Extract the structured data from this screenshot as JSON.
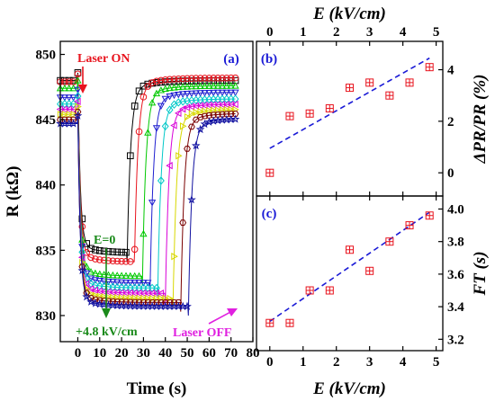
{
  "chart_data": [
    {
      "panel": "(a)",
      "type": "line",
      "xlabel": "Time (s)",
      "ylabel": "R (kΩ)",
      "xlim": [
        -8,
        80
      ],
      "ylim": [
        828,
        851
      ],
      "xticks": [
        0,
        10,
        20,
        30,
        40,
        50,
        60,
        70,
        80
      ],
      "yticks": [
        830,
        835,
        840,
        845,
        850
      ],
      "annotations": {
        "laser_on": "Laser ON",
        "laser_off": "Laser OFF",
        "e_zero": "E=0",
        "e_max": "+4.8 kV/cm"
      },
      "series": [
        {
          "color": "#000000",
          "marker": "square",
          "start": 848.0,
          "low": 834.8,
          "rise_time": 22.5,
          "end": 848.0
        },
        {
          "color": "#e8141e",
          "marker": "circle",
          "start": 847.9,
          "low": 834.1,
          "rise_time": 25.8,
          "end": 848.2
        },
        {
          "color": "#00c800",
          "marker": "triangle-up",
          "start": 847.4,
          "low": 833.0,
          "rise_time": 29.5,
          "end": 847.6
        },
        {
          "color": "#1f1fd0",
          "marker": "triangle-down",
          "start": 846.7,
          "low": 832.5,
          "rise_time": 33.0,
          "end": 847.1
        },
        {
          "color": "#00c8c8",
          "marker": "diamond",
          "start": 846.2,
          "low": 832.1,
          "rise_time": 36.5,
          "end": 846.6
        },
        {
          "color": "#d800d8",
          "marker": "triangle-left",
          "start": 845.8,
          "low": 831.7,
          "rise_time": 40.0,
          "end": 846.2
        },
        {
          "color": "#d8d800",
          "marker": "triangle-right",
          "start": 845.4,
          "low": 831.3,
          "rise_time": 43.5,
          "end": 845.8
        },
        {
          "color": "#7a0000",
          "marker": "hexagon",
          "start": 845.0,
          "low": 831.0,
          "rise_time": 47.0,
          "end": 845.5
        },
        {
          "color": "#1010a0",
          "marker": "star",
          "start": 844.7,
          "low": 830.7,
          "rise_time": 50.5,
          "end": 845.1
        }
      ]
    },
    {
      "panel": "(b)",
      "type": "scatter",
      "xlabel": "E (kV/cm)",
      "ylabel": "ΔPR/PR (%)",
      "xlim": [
        -0.4,
        5.2
      ],
      "ylim": [
        -0.9,
        5.1
      ],
      "xticks": [
        0,
        1,
        2,
        3,
        4,
        5
      ],
      "yticks": [
        0,
        2,
        4
      ],
      "x": [
        0,
        0.6,
        1.2,
        1.8,
        2.4,
        3.0,
        3.6,
        4.2,
        4.8
      ],
      "y": [
        0.0,
        2.2,
        2.3,
        2.5,
        3.3,
        3.5,
        3.0,
        3.5,
        4.1
      ],
      "fit": {
        "x": [
          0,
          4.8
        ],
        "y": [
          0.95,
          4.45
        ]
      }
    },
    {
      "panel": "(c)",
      "type": "scatter",
      "xlabel": "E (kV/cm)",
      "ylabel": "FT (s)",
      "xlim": [
        -0.4,
        5.2
      ],
      "ylim": [
        3.13,
        4.08
      ],
      "xticks": [
        0,
        1,
        2,
        3,
        4,
        5
      ],
      "yticks": [
        3.2,
        3.4,
        3.6,
        3.8,
        4.0
      ],
      "x": [
        0,
        0.6,
        1.2,
        1.8,
        2.4,
        3.0,
        3.6,
        4.2,
        4.8
      ],
      "y": [
        3.3,
        3.3,
        3.5,
        3.5,
        3.75,
        3.62,
        3.8,
        3.9,
        3.96
      ],
      "fit": {
        "x": [
          0,
          4.8
        ],
        "y": [
          3.31,
          3.98
        ]
      }
    }
  ]
}
